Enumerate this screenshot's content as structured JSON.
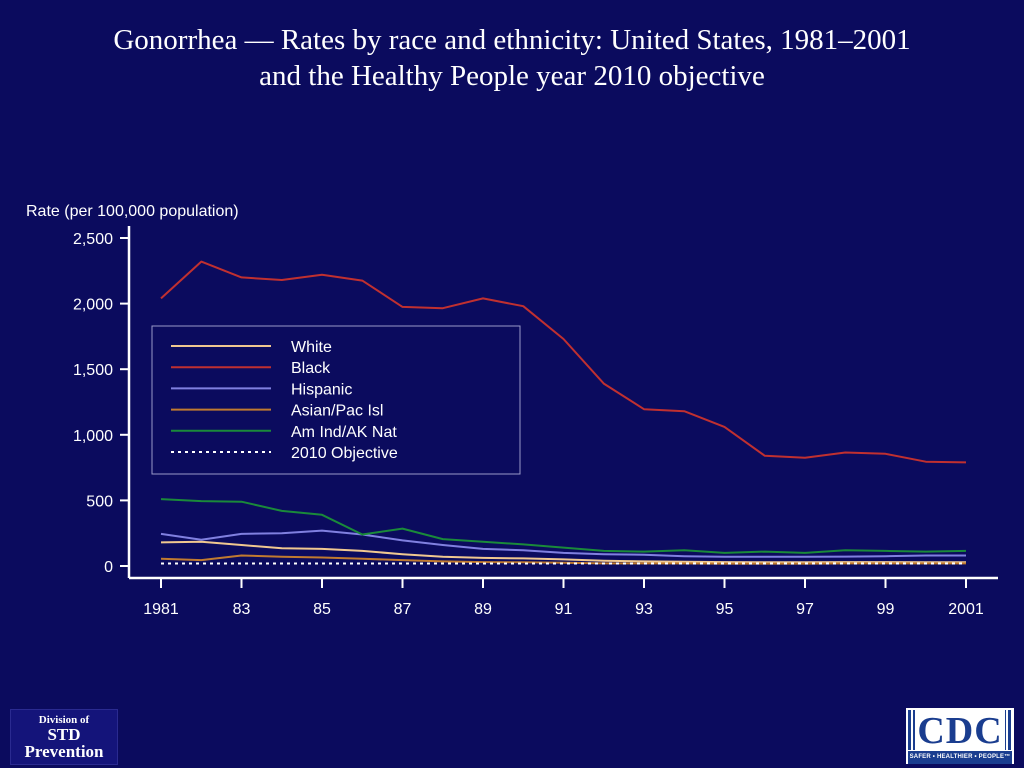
{
  "title": {
    "line1": "Gonorrhea — Rates by race and ethnicity: United States, 1981–2001",
    "line2": "and the Healthy People year 2010 objective"
  },
  "chart_data": {
    "type": "line",
    "ylabel": "Rate (per 100,000 population)",
    "xlabel": "",
    "ylim": [
      0,
      2500
    ],
    "yticks": [
      0,
      500,
      1000,
      1500,
      2000,
      2500
    ],
    "ytick_labels": [
      "0",
      "500",
      "1,000",
      "1,500",
      "2,000",
      "2,500"
    ],
    "xlim": [
      1981,
      2001
    ],
    "xticks": [
      1981,
      1983,
      1985,
      1987,
      1989,
      1991,
      1993,
      1995,
      1997,
      1999,
      2001
    ],
    "xtick_labels": [
      "1981",
      "83",
      "85",
      "87",
      "89",
      "91",
      "93",
      "95",
      "97",
      "99",
      "2001"
    ],
    "x": [
      1981,
      1982,
      1983,
      1984,
      1985,
      1986,
      1987,
      1988,
      1989,
      1990,
      1991,
      1992,
      1993,
      1994,
      1995,
      1996,
      1997,
      1998,
      1999,
      2000,
      2001
    ],
    "grid": false,
    "legend_position": "upper-left inside plot",
    "series": [
      {
        "name": "White",
        "color": "#f0c890",
        "dashed": false,
        "values": [
          180,
          185,
          160,
          135,
          130,
          115,
          90,
          70,
          62,
          58,
          50,
          40,
          35,
          33,
          30,
          29,
          29,
          30,
          30,
          29,
          29
        ]
      },
      {
        "name": "Black",
        "color": "#c03030",
        "dashed": false,
        "values": [
          2040,
          2320,
          2200,
          2180,
          2220,
          2175,
          1975,
          1965,
          2040,
          1980,
          1730,
          1390,
          1195,
          1180,
          1060,
          840,
          825,
          865,
          855,
          795,
          790
        ]
      },
      {
        "name": "Hispanic",
        "color": "#8080e0",
        "dashed": false,
        "values": [
          245,
          200,
          245,
          250,
          270,
          240,
          195,
          160,
          130,
          120,
          100,
          90,
          85,
          75,
          70,
          70,
          70,
          72,
          75,
          80,
          80
        ]
      },
      {
        "name": "Asian/Pac Isl",
        "color": "#c07a30",
        "dashed": false,
        "values": [
          55,
          45,
          80,
          70,
          65,
          55,
          45,
          35,
          30,
          28,
          25,
          20,
          20,
          20,
          18,
          18,
          18,
          20,
          20,
          20,
          20
        ]
      },
      {
        "name": "Am Ind/AK Nat",
        "color": "#1a8a3a",
        "dashed": false,
        "values": [
          510,
          495,
          490,
          420,
          390,
          240,
          285,
          205,
          185,
          165,
          140,
          115,
          110,
          120,
          100,
          110,
          100,
          120,
          115,
          110,
          115
        ]
      },
      {
        "name": "2010 Objective",
        "color": "#ffffff",
        "dashed": true,
        "values": [
          19,
          19,
          19,
          19,
          19,
          19,
          19,
          19,
          19,
          19,
          19,
          19,
          19,
          19,
          19,
          19,
          19,
          19,
          19,
          19,
          19
        ]
      }
    ]
  },
  "logos": {
    "std": {
      "line1": "Division of",
      "line2": "STD",
      "line3": "Prevention"
    },
    "cdc": {
      "name": "CDC",
      "tagline": "SAFER • HEALTHIER • PEOPLE™"
    }
  }
}
